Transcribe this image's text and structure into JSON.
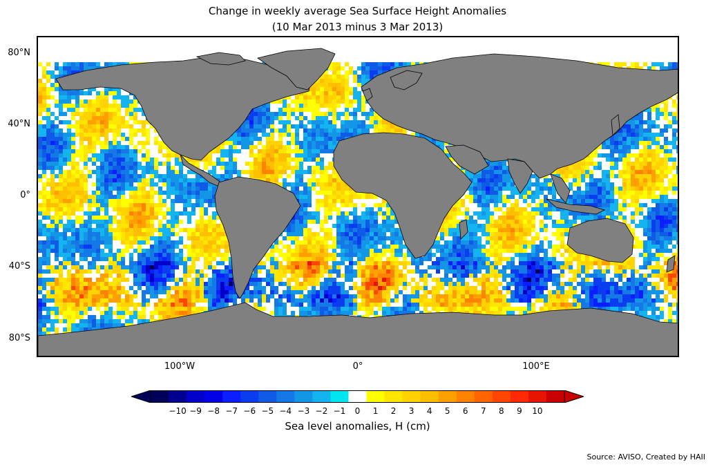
{
  "title": {
    "line1": "Change in weekly average Sea Surface Height Anomalies",
    "line2": "(10 Mar 2013 minus 3 Mar 2013)"
  },
  "map": {
    "land_color": "#808080",
    "ocean_no_change_color": "#ffffff",
    "lat_ticks": [
      "80°N",
      "40°N",
      "0°",
      "40°S",
      "80°S"
    ],
    "lon_ticks": [
      "100°W",
      "0°",
      "100°E"
    ]
  },
  "colorbar": {
    "label": "Sea level anomalies, H (cm)",
    "ticks": [
      "−10",
      "−9",
      "−8",
      "−7",
      "−6",
      "−5",
      "−4",
      "−3",
      "−2",
      "−1",
      "0",
      "1",
      "2",
      "3",
      "4",
      "5",
      "6",
      "7",
      "8",
      "9",
      "10"
    ],
    "colors": [
      "#00005a",
      "#000090",
      "#0000c8",
      "#0000e6",
      "#0a1eff",
      "#0a3cf0",
      "#0f5ae6",
      "#1478e6",
      "#1496e6",
      "#14b4f0",
      "#00e6f0",
      "#ffffff",
      "#ffff00",
      "#ffe600",
      "#ffd200",
      "#ffbe00",
      "#ffa000",
      "#ff8200",
      "#ff6400",
      "#ff4600",
      "#ff2800",
      "#e61400",
      "#c80000"
    ],
    "under_color": "#00005a",
    "over_color": "#c80000"
  },
  "source": "Source: AVISO, Created by HAII"
}
